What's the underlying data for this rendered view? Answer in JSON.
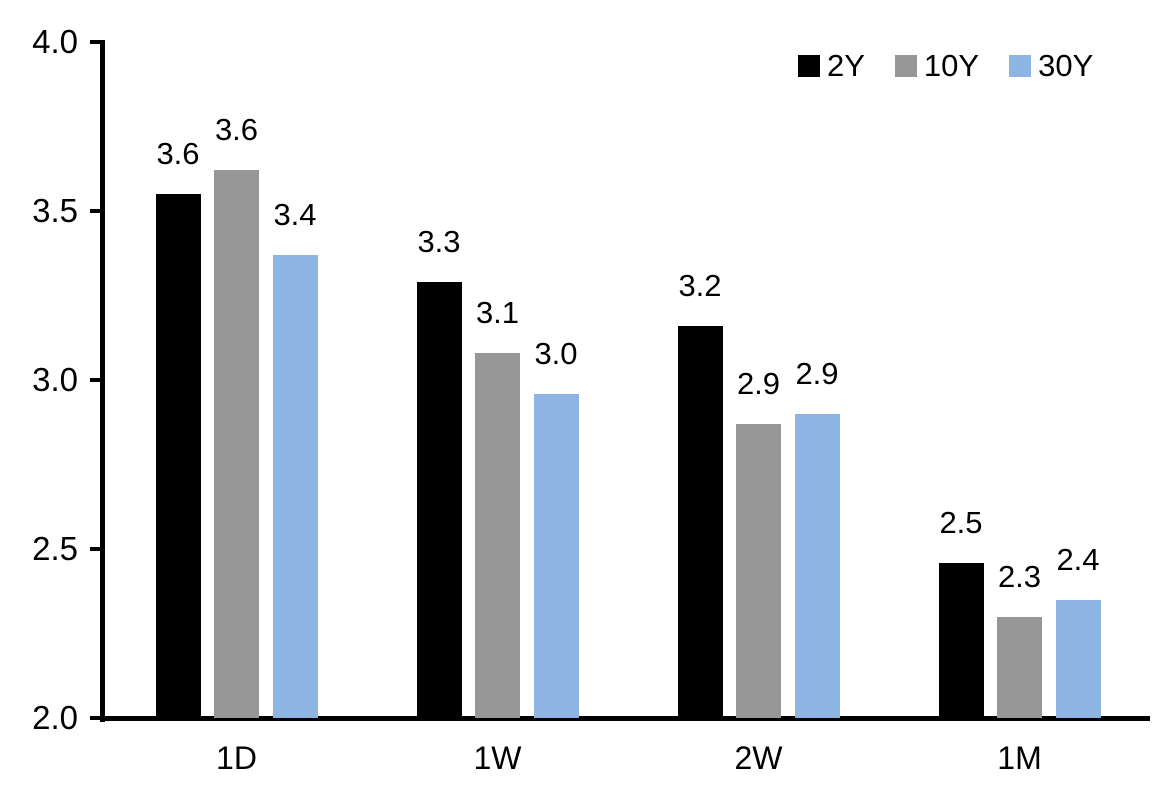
{
  "chart_data": {
    "type": "bar",
    "title": "",
    "categories": [
      "1D",
      "1W",
      "2W",
      "1M"
    ],
    "series": [
      {
        "name": "2Y",
        "color": "#000000",
        "values": [
          3.55,
          3.29,
          3.16,
          2.46
        ],
        "bar_labels": [
          "3.6",
          "3.3",
          "3.2",
          "2.5"
        ]
      },
      {
        "name": "10Y",
        "color": "#979797",
        "values": [
          3.62,
          3.08,
          2.87,
          2.3
        ],
        "bar_labels": [
          "3.6",
          "3.1",
          "2.9",
          "2.3"
        ]
      },
      {
        "name": "30Y",
        "color": "#8DB4E2",
        "values": [
          3.37,
          2.96,
          2.9,
          2.35
        ],
        "bar_labels": [
          "3.4",
          "3.0",
          "2.9",
          "2.4"
        ]
      }
    ],
    "ylim": [
      2.0,
      4.0
    ],
    "ytick_labels": [
      "4.0",
      "3.5",
      "3.0",
      "2.5",
      "2.0"
    ],
    "xlabel": "",
    "ylabel": "",
    "grid": false,
    "legend_position": "top-right",
    "axis_color": "#000000",
    "background_color": "#FFFFFF",
    "text_color": "#000000"
  }
}
